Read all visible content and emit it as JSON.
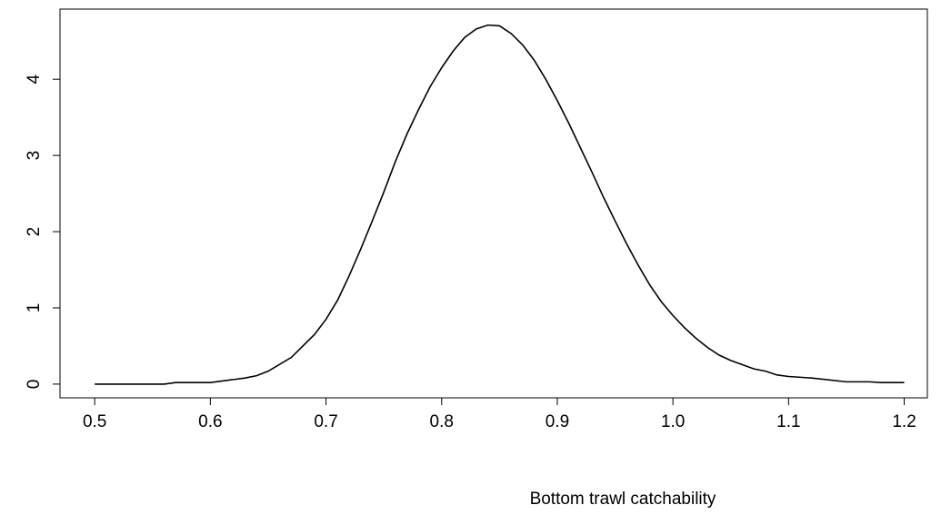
{
  "chart_data": {
    "type": "line",
    "x_label": "Bottom trawl catchability",
    "x": [
      0.5,
      0.52,
      0.54,
      0.56,
      0.57,
      0.6,
      0.62,
      0.63,
      0.64,
      0.65,
      0.67,
      0.69,
      0.7,
      0.71,
      0.72,
      0.73,
      0.74,
      0.75,
      0.76,
      0.77,
      0.78,
      0.79,
      0.8,
      0.81,
      0.82,
      0.83,
      0.84,
      0.85,
      0.86,
      0.87,
      0.88,
      0.89,
      0.9,
      0.91,
      0.92,
      0.93,
      0.94,
      0.95,
      0.96,
      0.97,
      0.98,
      0.99,
      1.0,
      1.01,
      1.02,
      1.03,
      1.04,
      1.05,
      1.07,
      1.08,
      1.09,
      1.1,
      1.12,
      1.15,
      1.17,
      1.18,
      1.2
    ],
    "series": [
      {
        "color": "#000000",
        "values": [
          0,
          0,
          0,
          0,
          0.02,
          0.02,
          0.06,
          0.08,
          0.11,
          0.17,
          0.35,
          0.65,
          0.85,
          1.1,
          1.42,
          1.77,
          2.14,
          2.52,
          2.92,
          3.28,
          3.6,
          3.9,
          4.15,
          4.37,
          4.55,
          4.66,
          4.71,
          4.7,
          4.6,
          4.45,
          4.25,
          4.0,
          3.72,
          3.42,
          3.1,
          2.78,
          2.45,
          2.14,
          1.84,
          1.56,
          1.3,
          1.08,
          0.9,
          0.74,
          0.6,
          0.48,
          0.38,
          0.31,
          0.2,
          0.17,
          0.12,
          0.1,
          0.08,
          0.03,
          0.03,
          0.02,
          0.02
        ]
      }
    ],
    "xlim": [
      0.47,
      1.22
    ],
    "ylim": [
      -0.18,
      4.92
    ],
    "xticks": [
      0.5,
      0.6,
      0.7,
      0.8,
      0.9,
      {
        "value": 1,
        "label": "1.0"
      },
      1.1,
      1.2
    ],
    "yticks": [
      0,
      1,
      2,
      3,
      4
    ]
  }
}
